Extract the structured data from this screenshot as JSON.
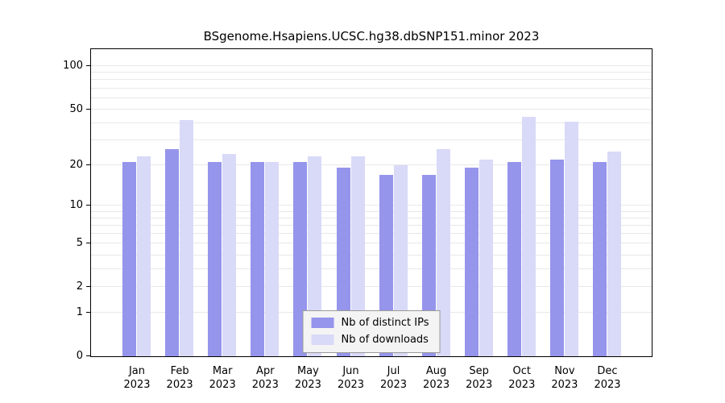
{
  "chart_data": {
    "type": "bar",
    "title": "BSgenome.Hsapiens.UCSC.hg38.dbSNP151.minor 2023",
    "categories": [
      "Jan",
      "Feb",
      "Mar",
      "Apr",
      "May",
      "Jun",
      "Jul",
      "Aug",
      "Sep",
      "Oct",
      "Nov",
      "Dec"
    ],
    "year_label": "2023",
    "series": [
      {
        "name": "Nb of distinct IPs",
        "color": "#9595ec",
        "values": [
          21,
          26,
          21,
          21,
          21,
          19,
          17,
          17,
          19,
          21,
          22,
          21
        ]
      },
      {
        "name": "Nb of downloads",
        "color": "#d9d9f8",
        "values": [
          23,
          42,
          24,
          21,
          23,
          23,
          20,
          26,
          22,
          44,
          41,
          25
        ]
      }
    ],
    "scale": "log1p",
    "ylim": [
      0,
      135
    ],
    "yticks": [
      100,
      50,
      20,
      10,
      5,
      2,
      1,
      0
    ],
    "minor_gridlines": [
      1,
      2,
      3,
      4,
      5,
      6,
      7,
      8,
      9,
      10,
      20,
      30,
      40,
      50,
      60,
      70,
      80,
      90,
      100
    ],
    "grid": true,
    "legend_position": "bottom-center-inside",
    "xlabel": "",
    "ylabel": ""
  },
  "legend": {
    "items": [
      {
        "label": "Nb of distinct IPs",
        "color": "#9595ec"
      },
      {
        "label": "Nb of downloads",
        "color": "#d9d9f8"
      }
    ]
  }
}
